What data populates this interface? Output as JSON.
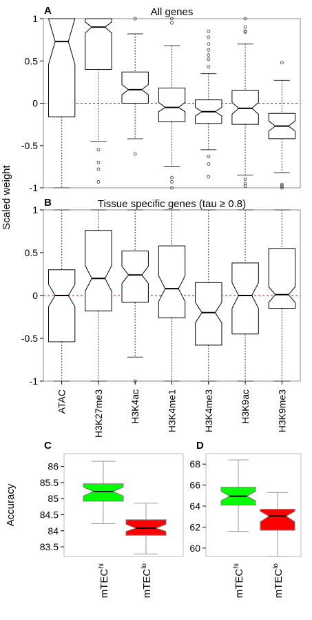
{
  "shared": {
    "ylabel_top": "Scaled weight",
    "categories": [
      "ATAC",
      "H3K27me3",
      "H3K4ac",
      "H3K4me1",
      "H3K4me3",
      "H3K9ac",
      "H3K9me3"
    ],
    "reference_line_color": "#e8000b",
    "box_fill": "#ffffff",
    "box_stroke": "#000000"
  },
  "chart_data": [
    {
      "panel": "A",
      "type": "boxplot",
      "title": "All genes",
      "ylabel": "Scaled weight",
      "ylim": [
        -1,
        1
      ],
      "yticks": [
        1,
        0.5,
        0,
        -0.5,
        -1
      ],
      "reference_line": 0,
      "notched": true,
      "boxes": [
        {
          "category": "ATAC",
          "whisker_low": -1,
          "q1": -0.16,
          "median": 0.73,
          "q3": 1,
          "whisker_high": 1,
          "notch_low": 0.46,
          "notch_high": 1,
          "outliers": []
        },
        {
          "category": "H3K27me3",
          "whisker_low": -0.45,
          "q1": 0.4,
          "median": 0.9,
          "q3": 1,
          "whisker_high": 1,
          "notch_low": 0.83,
          "notch_high": 0.96,
          "outliers": [
            -0.55,
            -0.7,
            -0.78,
            -0.93
          ]
        },
        {
          "category": "H3K4ac",
          "whisker_low": -0.42,
          "q1": 0,
          "median": 0.16,
          "q3": 0.37,
          "whisker_high": 0.82,
          "notch_low": 0.1,
          "notch_high": 0.22,
          "outliers": [
            1,
            -0.6
          ]
        },
        {
          "category": "H3K4me1",
          "whisker_low": -0.75,
          "q1": -0.22,
          "median": -0.05,
          "q3": 0.18,
          "whisker_high": 0.68,
          "notch_low": -0.1,
          "notch_high": 0.01,
          "outliers": [
            1,
            0.95,
            -0.88,
            -0.93,
            -1
          ]
        },
        {
          "category": "H3K4me3",
          "whisker_low": -0.55,
          "q1": -0.24,
          "median": -0.1,
          "q3": 0.04,
          "whisker_high": 0.35,
          "notch_low": -0.15,
          "notch_high": -0.05,
          "outliers": [
            0.85,
            0.78,
            0.7,
            0.63,
            0.57,
            0.52,
            0.43,
            -0.63,
            -0.72,
            -0.87
          ]
        },
        {
          "category": "H3K9ac",
          "whisker_low": -0.85,
          "q1": -0.25,
          "median": -0.06,
          "q3": 0.15,
          "whisker_high": 0.7,
          "notch_low": -0.13,
          "notch_high": 0.01,
          "outliers": [
            1,
            0.9,
            0.85,
            0.84,
            -0.9,
            -0.95,
            -0.98
          ]
        },
        {
          "category": "H3K9me3",
          "whisker_low": -0.82,
          "q1": -0.42,
          "median": -0.27,
          "q3": -0.12,
          "whisker_high": 0.27,
          "notch_low": -0.33,
          "notch_high": -0.21,
          "outliers": [
            0.48,
            -0.96,
            -0.98,
            -1
          ]
        }
      ]
    },
    {
      "panel": "B",
      "type": "boxplot",
      "title": "Tissue specific genes (tau ≥ 0.8)",
      "ylabel": "Scaled weight",
      "ylim": [
        -1,
        1
      ],
      "yticks": [
        1,
        0.5,
        0,
        -0.5,
        -1
      ],
      "reference_line": 0,
      "notched": true,
      "boxes": [
        {
          "category": "ATAC",
          "whisker_low": -1,
          "q1": -0.54,
          "median": 0,
          "q3": 0.3,
          "whisker_high": 1,
          "notch_low": -0.13,
          "notch_high": 0.13,
          "outliers": []
        },
        {
          "category": "H3K27me3",
          "whisker_low": -1,
          "q1": -0.18,
          "median": 0.2,
          "q3": 0.76,
          "whisker_high": 1,
          "notch_low": 0.05,
          "notch_high": 0.35,
          "outliers": []
        },
        {
          "category": "H3K4ac",
          "whisker_low": -0.72,
          "q1": -0.08,
          "median": 0.24,
          "q3": 0.52,
          "whisker_high": 1,
          "notch_low": 0.14,
          "notch_high": 0.34,
          "outliers": [
            -1
          ]
        },
        {
          "category": "H3K4me1",
          "whisker_low": -1,
          "q1": -0.26,
          "median": 0.08,
          "q3": 0.58,
          "whisker_high": 1,
          "notch_low": -0.07,
          "notch_high": 0.23,
          "outliers": []
        },
        {
          "category": "H3K4me3",
          "whisker_low": -1,
          "q1": -0.58,
          "median": -0.2,
          "q3": 0.15,
          "whisker_high": 1,
          "notch_low": -0.32,
          "notch_high": -0.08,
          "outliers": []
        },
        {
          "category": "H3K9ac",
          "whisker_low": -1,
          "q1": -0.45,
          "median": 0,
          "q3": 0.38,
          "whisker_high": 1,
          "notch_low": -0.15,
          "notch_high": 0.15,
          "outliers": []
        },
        {
          "category": "H3K9me3",
          "whisker_low": -1,
          "q1": -0.15,
          "median": 0.01,
          "q3": 0.55,
          "whisker_high": 1,
          "notch_low": -0.08,
          "notch_high": 0.1,
          "outliers": []
        }
      ]
    },
    {
      "panel": "C",
      "type": "boxplot",
      "title": "",
      "ylabel": "Accuracy",
      "ylim": [
        83.2,
        86.4
      ],
      "yticks": [
        86,
        85.5,
        85,
        84.5,
        84,
        83.5
      ],
      "notched": true,
      "boxes": [
        {
          "category": "mTEC",
          "sup": "hi",
          "color": "#00ff00",
          "whisker_low": 84.22,
          "q1": 84.92,
          "median": 85.22,
          "q3": 85.46,
          "whisker_high": 86.16,
          "notch_low": 85.08,
          "notch_high": 85.36
        },
        {
          "category": "mTEC",
          "sup": "lo",
          "color": "#ff0000",
          "whisker_low": 83.28,
          "q1": 83.86,
          "median": 84.08,
          "q3": 84.34,
          "whisker_high": 84.86,
          "notch_low": 83.98,
          "notch_high": 84.2
        }
      ]
    },
    {
      "panel": "D",
      "type": "boxplot",
      "title": "",
      "ylabel": "",
      "ylim": [
        59.2,
        69
      ],
      "yticks": [
        68,
        66,
        64,
        62,
        60
      ],
      "notched": true,
      "boxes": [
        {
          "category": "mTEC",
          "sup": "hi",
          "color": "#00ff00",
          "whisker_low": 61.6,
          "q1": 64.1,
          "median": 64.95,
          "q3": 65.8,
          "whisker_high": 68.4,
          "notch_low": 64.5,
          "notch_high": 65.4
        },
        {
          "category": "mTEC",
          "sup": "lo",
          "color": "#ff0000",
          "whisker_low": 59.2,
          "q1": 61.7,
          "median": 63.05,
          "q3": 63.7,
          "whisker_high": 65.3,
          "notch_low": 62.5,
          "notch_high": 63.5
        }
      ]
    }
  ]
}
